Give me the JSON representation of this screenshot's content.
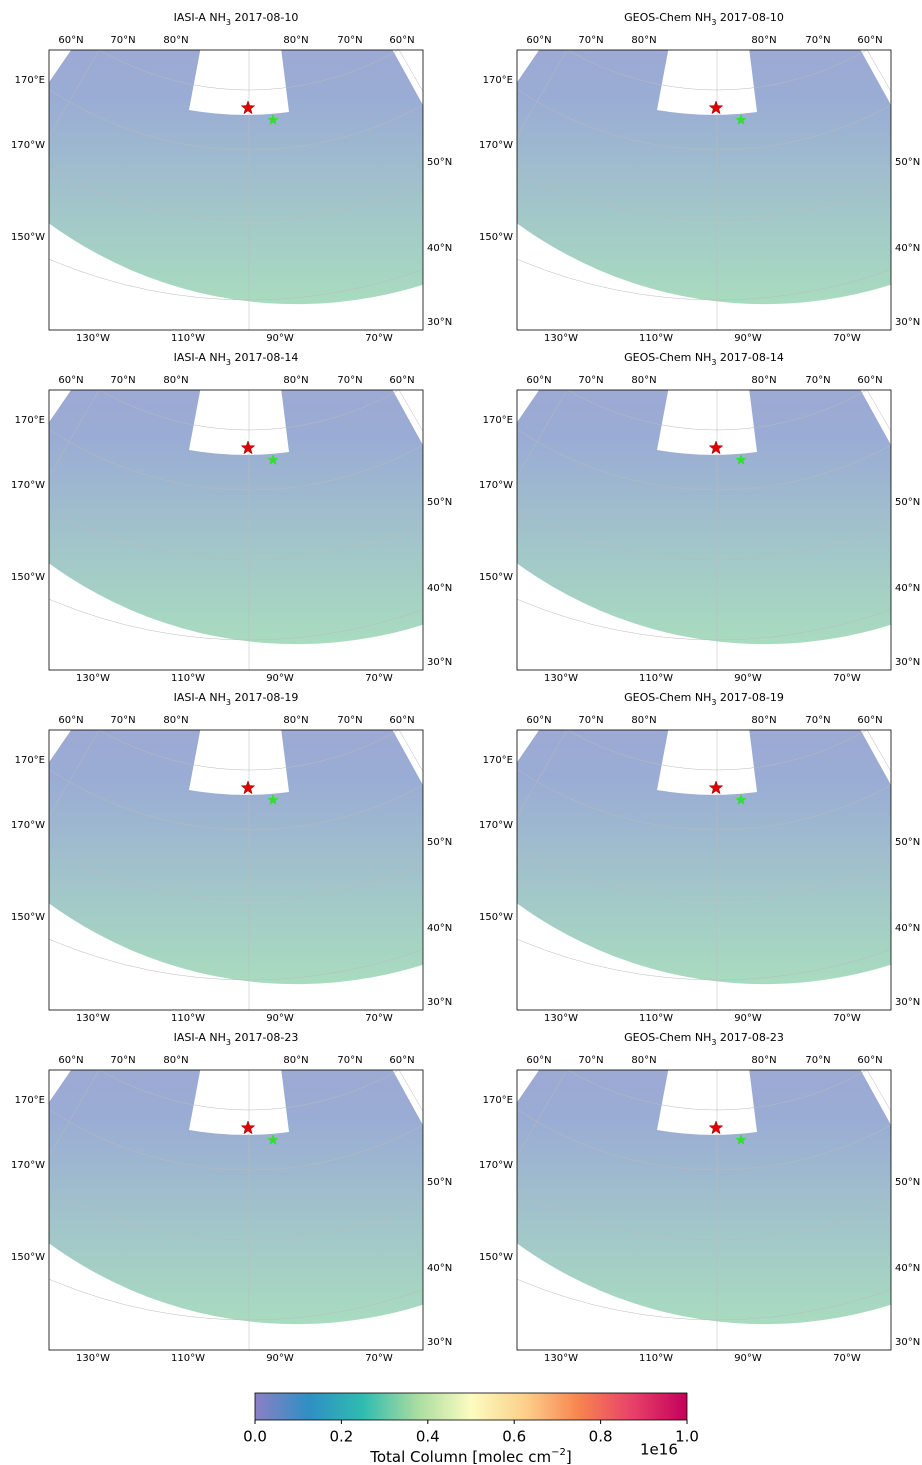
{
  "panels": [
    {
      "title": [
        "IASI-A NH",
        "3",
        " 2017-08-10"
      ]
    },
    {
      "title": [
        "GEOS-Chem NH",
        "3",
        " 2017-08-10"
      ]
    },
    {
      "title": [
        "IASI-A NH",
        "3",
        " 2017-08-14"
      ]
    },
    {
      "title": [
        "GEOS-Chem NH",
        "3",
        " 2017-08-14"
      ]
    },
    {
      "title": [
        "IASI-A NH",
        "3",
        " 2017-08-19"
      ]
    },
    {
      "title": [
        "GEOS-Chem NH",
        "3",
        " 2017-08-19"
      ]
    },
    {
      "title": [
        "IASI-A NH",
        "3",
        " 2017-08-23"
      ]
    },
    {
      "title": [
        "GEOS-Chem NH",
        "3",
        " 2017-08-23"
      ]
    }
  ],
  "axis_labels": {
    "top": [
      "60°N",
      "70°N",
      "80°N",
      "80°N",
      "70°N",
      "60°N"
    ],
    "left": [
      "170°E",
      "170°W",
      "150°W"
    ],
    "right": [
      "50°N",
      "40°N",
      "30°N"
    ],
    "bottom": [
      "130°W",
      "110°W",
      "90°W",
      "70°W"
    ]
  },
  "colorbar": {
    "lim": [
      0,
      1
    ],
    "ticks": [
      {
        "value": 0,
        "label": "0.0"
      },
      {
        "value": 0.2,
        "label": "0.2"
      },
      {
        "value": 0.4,
        "label": "0.4"
      },
      {
        "value": 0.6,
        "label": "0.6"
      },
      {
        "value": 0.8,
        "label": "0.8"
      },
      {
        "value": 1,
        "label": "1.0"
      }
    ],
    "label": [
      "Total Column [molec cm",
      "−2",
      "]"
    ],
    "offset": "1e16",
    "colormap": [
      "#8a80c4",
      "#2f8fc4",
      "#2fbcb0",
      "#a8dca0",
      "#fcfcc0",
      "#fcd08a",
      "#f7844f",
      "#e8406a",
      "#c4005a"
    ]
  }
}
